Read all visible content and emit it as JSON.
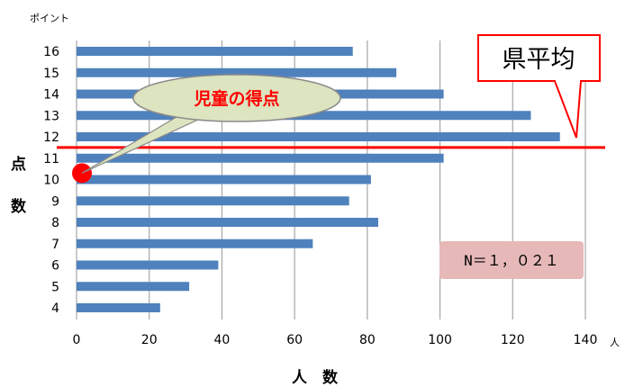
{
  "chart_data": {
    "type": "bar",
    "orientation": "horizontal",
    "categories": [
      "4",
      "5",
      "6",
      "7",
      "8",
      "9",
      "10",
      "11",
      "12",
      "13",
      "14",
      "15",
      "16"
    ],
    "values": [
      23,
      31,
      39,
      65,
      83,
      75,
      81,
      101,
      133,
      125,
      101,
      88,
      76
    ],
    "xlabel": "人　数",
    "xunit": "人",
    "ylabel": [
      "点",
      "数"
    ],
    "yunit": "ポイント",
    "xlim": [
      0,
      140
    ],
    "xticks": [
      "0",
      "20",
      "40",
      "60",
      "80",
      "100",
      "120",
      "140"
    ],
    "grid": "vertical",
    "bar_color": "#4f81bd",
    "reference_line": {
      "value": 11.5,
      "color": "#ff0000"
    },
    "student_point": {
      "value": 10.3,
      "color": "#ff0000"
    },
    "annotations": {
      "callout": "児童の得点",
      "average_label": "県平均",
      "sample_size": "N＝１，０２１"
    }
  }
}
